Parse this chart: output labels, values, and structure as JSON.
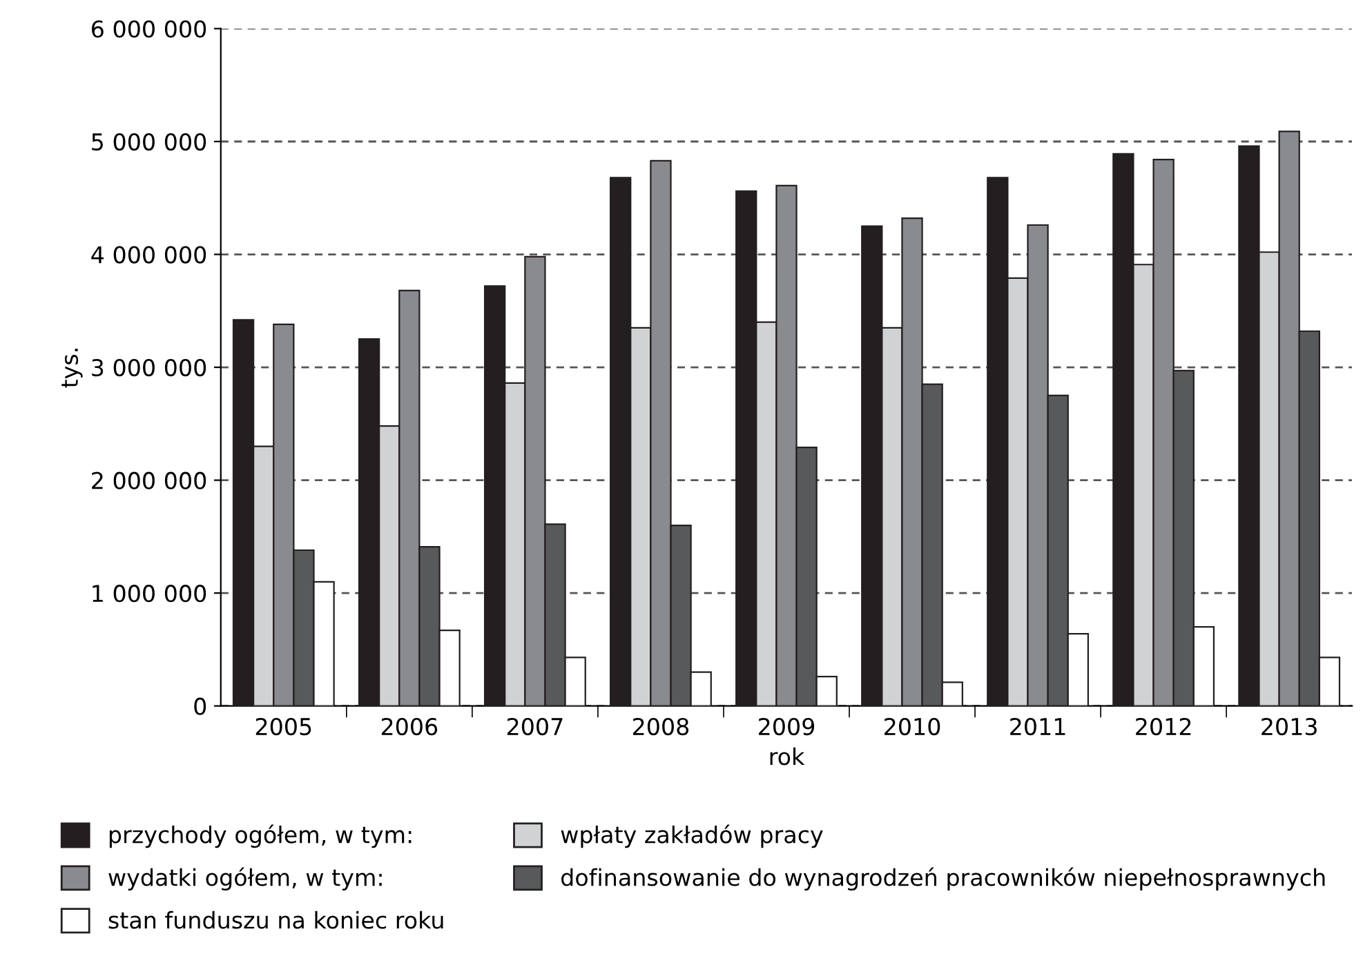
{
  "chart_data": {
    "type": "bar",
    "xlabel": "rok",
    "ylabel": "tys.",
    "categories": [
      "2005",
      "2006",
      "2007",
      "2008",
      "2009",
      "2010",
      "2011",
      "2012",
      "2013"
    ],
    "series": [
      {
        "name": "przychody ogółem, w tym:",
        "color": "#231f20",
        "values": [
          3420000,
          3250000,
          3720000,
          4680000,
          4560000,
          4250000,
          4680000,
          4890000,
          4960000
        ]
      },
      {
        "name": "wpłaty zakładów pracy",
        "color": "#d1d2d4",
        "values": [
          2300000,
          2480000,
          2860000,
          3350000,
          3400000,
          3350000,
          3790000,
          3910000,
          4020000
        ]
      },
      {
        "name": "wydatki ogółem, w tym:",
        "color": "#8a8b8f",
        "values": [
          3380000,
          3680000,
          3980000,
          4830000,
          4610000,
          4320000,
          4260000,
          4840000,
          5090000
        ]
      },
      {
        "name": "dofinansowanie do wynagrodzeń pracowników niepełnosprawnych",
        "color": "#58595b",
        "values": [
          1380000,
          1410000,
          1610000,
          1600000,
          2290000,
          2850000,
          2750000,
          2970000,
          3320000
        ]
      },
      {
        "name": "stan funduszu na koniec roku",
        "color": "#ffffff",
        "values": [
          1100000,
          670000,
          430000,
          300000,
          260000,
          210000,
          640000,
          700000,
          430000
        ]
      }
    ],
    "ylim": [
      0,
      6000000
    ],
    "yticks": [
      0,
      {
        "value": 1000000,
        "label": "1 000 000"
      },
      {
        "value": 2000000,
        "label": "2 000 000"
      },
      {
        "value": 3000000,
        "label": "3 000 000"
      },
      {
        "value": 4000000,
        "label": "4 000 000"
      },
      {
        "value": 5000000,
        "label": "5 000 000"
      },
      {
        "value": 6000000,
        "label": "6 000 000"
      }
    ],
    "grid": "y",
    "line_style": "dashed",
    "legend": "bottom"
  }
}
